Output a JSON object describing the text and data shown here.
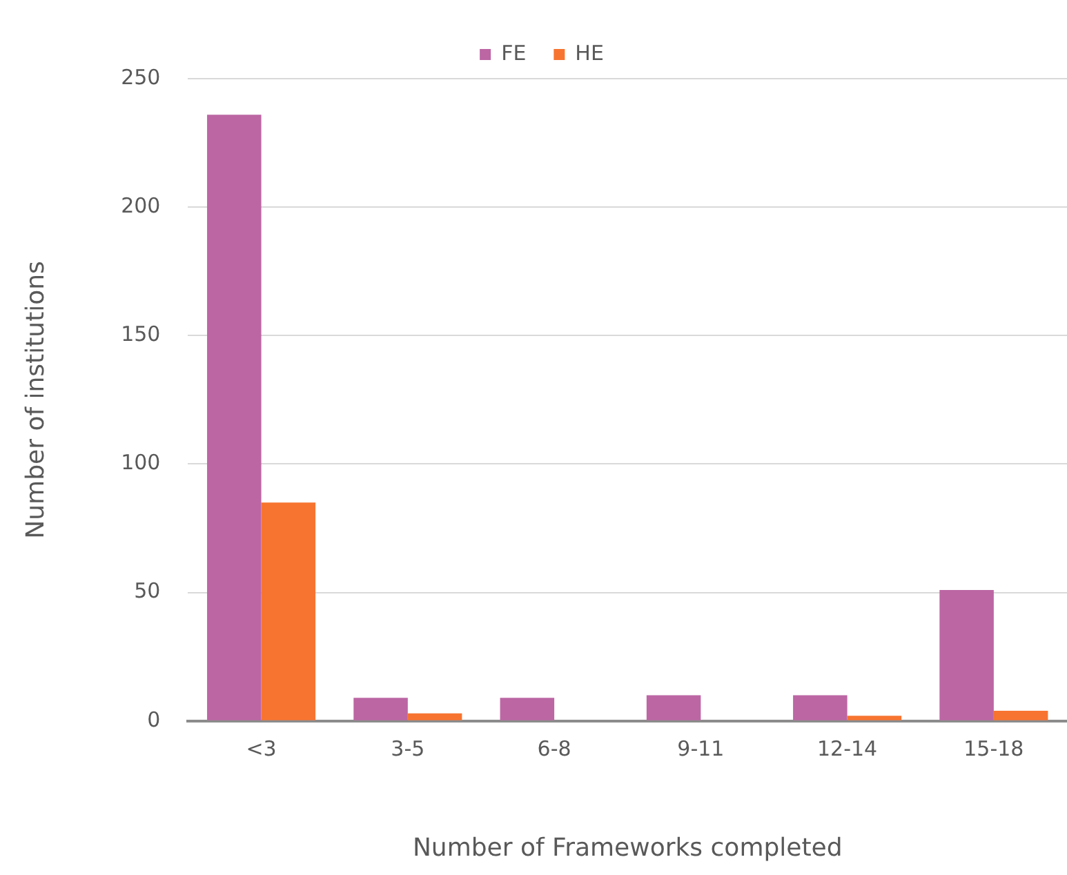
{
  "chart_data": {
    "type": "bar",
    "xlabel": "Number of Frameworks completed",
    "ylabel": "Number of institutions",
    "categories": [
      "<3",
      "3-5",
      "6-8",
      "9-11",
      "12-14",
      "15-18"
    ],
    "series": [
      {
        "name": "FE",
        "color": "#bc66a4",
        "values": [
          236,
          9,
          9,
          10,
          10,
          51
        ]
      },
      {
        "name": "HE",
        "color": "#f77430",
        "values": [
          85,
          3,
          0,
          0,
          2,
          4
        ]
      }
    ],
    "ylim": [
      0,
      250
    ],
    "yticks": [
      0,
      50,
      100,
      150,
      200,
      250
    ],
    "grid": "y",
    "legend": "top"
  }
}
